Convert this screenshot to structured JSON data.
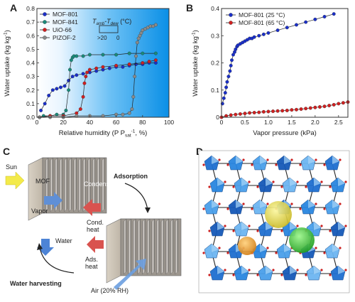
{
  "panels": {
    "A": "A",
    "B": "B",
    "C": "C",
    "D": "D"
  },
  "chart_data": [
    {
      "panel": "A",
      "type": "scatter",
      "xlabel_main": "Relative humidity (P P",
      "xlabel_sub": "sat",
      "xlabel_sup": "-1",
      "xlabel_end": ", %)",
      "ylabel": "Water uptake (kg kg",
      "ylabel_sup": "-1",
      "ylabel_end": ")",
      "xlim": [
        0,
        100
      ],
      "ylim": [
        0,
        0.8
      ],
      "xticks": [
        0,
        20,
        40,
        60,
        80,
        100
      ],
      "yticks": [
        0.0,
        0.1,
        0.2,
        0.3,
        0.4,
        0.5,
        0.6,
        0.7,
        0.8
      ],
      "ytick_labels": [
        "0.0",
        "0.1",
        "0.2",
        "0.3",
        "0.4",
        "0.5",
        "0.6",
        "0.7",
        "0.8"
      ],
      "background": "gradient light-to-blue",
      "legend_placement": "top-left",
      "inset_label_main": "T",
      "inset_label_sub1": "amb",
      "inset_label_sep": "-T",
      "inset_label_sub2": "dew",
      "inset_label_unit": " (°C)",
      "inset_label_left": ">20",
      "inset_label_right": "0",
      "series": [
        {
          "name": "MOF-801",
          "color": "#1a2fc8",
          "x": [
            3,
            6,
            9,
            12,
            15,
            18,
            21,
            24,
            27,
            30,
            35,
            40,
            45,
            50,
            55,
            60,
            65,
            70,
            75,
            80,
            85,
            90
          ],
          "y": [
            0.05,
            0.1,
            0.16,
            0.2,
            0.21,
            0.22,
            0.23,
            0.27,
            0.3,
            0.31,
            0.32,
            0.33,
            0.34,
            0.35,
            0.36,
            0.37,
            0.37,
            0.38,
            0.39,
            0.39,
            0.4,
            0.4
          ]
        },
        {
          "name": "MOF-841",
          "color": "#1a8a7a",
          "x": [
            2,
            5,
            10,
            15,
            20,
            22,
            24,
            25,
            26,
            27,
            28,
            30,
            35,
            40,
            50,
            60,
            70,
            80,
            90
          ],
          "y": [
            0.0,
            0.01,
            0.01,
            0.02,
            0.02,
            0.05,
            0.2,
            0.35,
            0.42,
            0.44,
            0.45,
            0.45,
            0.45,
            0.46,
            0.46,
            0.46,
            0.47,
            0.47,
            0.47
          ]
        },
        {
          "name": "UiO-66",
          "color": "#d02020",
          "x": [
            2,
            10,
            20,
            30,
            33,
            35,
            36,
            37,
            38,
            40,
            45,
            50,
            60,
            70,
            80,
            85,
            90
          ],
          "y": [
            0.0,
            0.01,
            0.01,
            0.03,
            0.06,
            0.15,
            0.25,
            0.3,
            0.33,
            0.35,
            0.36,
            0.37,
            0.38,
            0.39,
            0.4,
            0.41,
            0.42
          ]
        },
        {
          "name": "PIZOF-2",
          "color": "#8a8a8a",
          "x": [
            2,
            10,
            20,
            30,
            40,
            50,
            60,
            65,
            70,
            72,
            73,
            74,
            75,
            76,
            77,
            78,
            79,
            80,
            82,
            84,
            86,
            88,
            90
          ],
          "y": [
            0.0,
            0.0,
            0.0,
            0.01,
            0.01,
            0.01,
            0.02,
            0.02,
            0.03,
            0.06,
            0.15,
            0.3,
            0.45,
            0.55,
            0.58,
            0.6,
            0.62,
            0.64,
            0.65,
            0.66,
            0.67,
            0.67,
            0.68
          ]
        }
      ]
    },
    {
      "panel": "B",
      "type": "scatter",
      "xlabel": "Vapor pressure (kPa)",
      "ylabel": "Water uptake (kg kg",
      "ylabel_sup": "-1",
      "ylabel_end": ")",
      "xlim": [
        0,
        2.7
      ],
      "ylim": [
        0,
        0.4
      ],
      "xticks": [
        0,
        0.5,
        1.0,
        1.5,
        2.0,
        2.5
      ],
      "xtick_labels": [
        "0",
        "0.5",
        "1.0",
        "1.5",
        "2.0",
        "2.5"
      ],
      "yticks": [
        0,
        0.1,
        0.2,
        0.3,
        0.4
      ],
      "ytick_labels": [
        "0",
        "0.1",
        "0.2",
        "0.3",
        "0.4"
      ],
      "legend_placement": "top-left",
      "series": [
        {
          "name": "MOF-801 (25 °C)",
          "color": "#1a2fc8",
          "x": [
            0.02,
            0.05,
            0.08,
            0.1,
            0.12,
            0.15,
            0.18,
            0.2,
            0.22,
            0.25,
            0.28,
            0.3,
            0.33,
            0.35,
            0.4,
            0.45,
            0.5,
            0.55,
            0.6,
            0.65,
            0.7,
            0.8,
            0.9,
            1.0,
            1.2,
            1.4,
            1.6,
            1.8,
            2.0,
            2.2,
            2.4
          ],
          "y": [
            0.05,
            0.07,
            0.09,
            0.11,
            0.13,
            0.15,
            0.17,
            0.19,
            0.21,
            0.23,
            0.24,
            0.25,
            0.26,
            0.265,
            0.27,
            0.275,
            0.28,
            0.285,
            0.29,
            0.29,
            0.295,
            0.3,
            0.305,
            0.31,
            0.32,
            0.33,
            0.34,
            0.35,
            0.36,
            0.37,
            0.38
          ]
        },
        {
          "name": "MOF-801 (65 °C)",
          "color": "#d02020",
          "x": [
            0.0,
            0.1,
            0.2,
            0.3,
            0.4,
            0.5,
            0.6,
            0.7,
            0.8,
            0.9,
            1.0,
            1.1,
            1.2,
            1.3,
            1.4,
            1.5,
            1.6,
            1.7,
            1.8,
            1.9,
            2.0,
            2.1,
            2.2,
            2.3,
            2.4,
            2.5,
            2.6,
            2.7
          ],
          "y": [
            0.0,
            0.005,
            0.008,
            0.01,
            0.012,
            0.014,
            0.016,
            0.017,
            0.018,
            0.02,
            0.021,
            0.022,
            0.023,
            0.024,
            0.025,
            0.027,
            0.028,
            0.03,
            0.032,
            0.034,
            0.036,
            0.038,
            0.04,
            0.043,
            0.046,
            0.05,
            0.053,
            0.056
          ]
        }
      ]
    }
  ],
  "diagram_c": {
    "sun": "Sun",
    "mof": "MOF",
    "vapor": "Vapor",
    "condenser": "Condenser",
    "cond_heat_1": "Cond.",
    "cond_heat_2": "heat",
    "adsorption": "Adsorption",
    "water": "Water",
    "ads_heat_1": "Ads.",
    "ads_heat_2": "heat",
    "water_harvesting": "Water harvesting",
    "air": "Air (20% RH)"
  }
}
